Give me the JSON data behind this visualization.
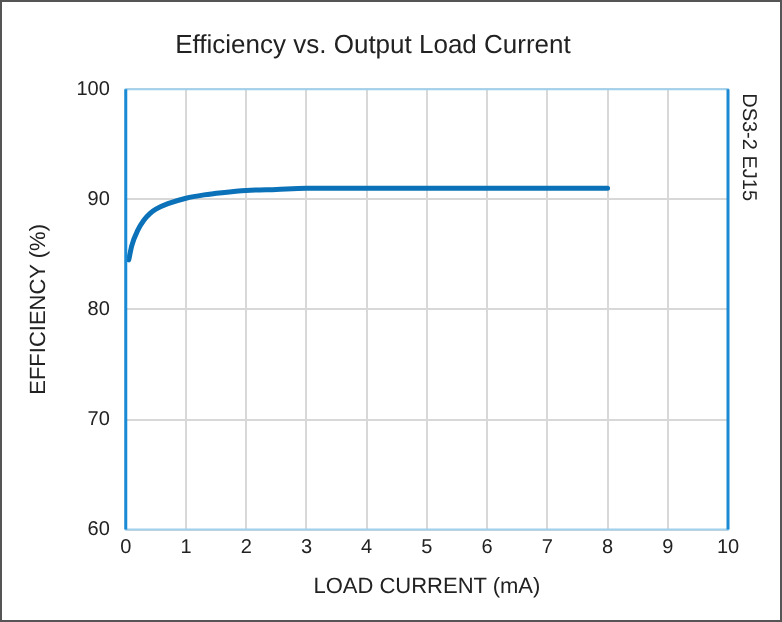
{
  "chart_data": {
    "type": "line",
    "title": "Efficiency vs. Output Load Current",
    "xlabel": "LOAD CURRENT (mA)",
    "ylabel": "EFFICIENCY (%)",
    "annotations": [
      "DS3-2 EJ15"
    ],
    "x": [
      0.05,
      0.1,
      0.2,
      0.3,
      0.4,
      0.5,
      0.7,
      1,
      1.3,
      1.6,
      2,
      2.5,
      3,
      4,
      5,
      6,
      7,
      8
    ],
    "series": [
      {
        "color": "#0b72b9",
        "values": [
          84.5,
          85.8,
          87.2,
          88.1,
          88.7,
          89.1,
          89.6,
          90.1,
          90.4,
          90.6,
          90.8,
          90.9,
          91,
          91,
          91,
          91,
          91,
          91
        ]
      }
    ],
    "xlim": [
      0,
      10
    ],
    "xticks": [
      0,
      1,
      2,
      3,
      4,
      5,
      6,
      7,
      8,
      9,
      10
    ],
    "ylim": [
      60,
      100
    ],
    "yticks": [
      60,
      70,
      80,
      90,
      100
    ],
    "grid": true,
    "legend": false,
    "marker": "none",
    "line_style": "solid"
  }
}
